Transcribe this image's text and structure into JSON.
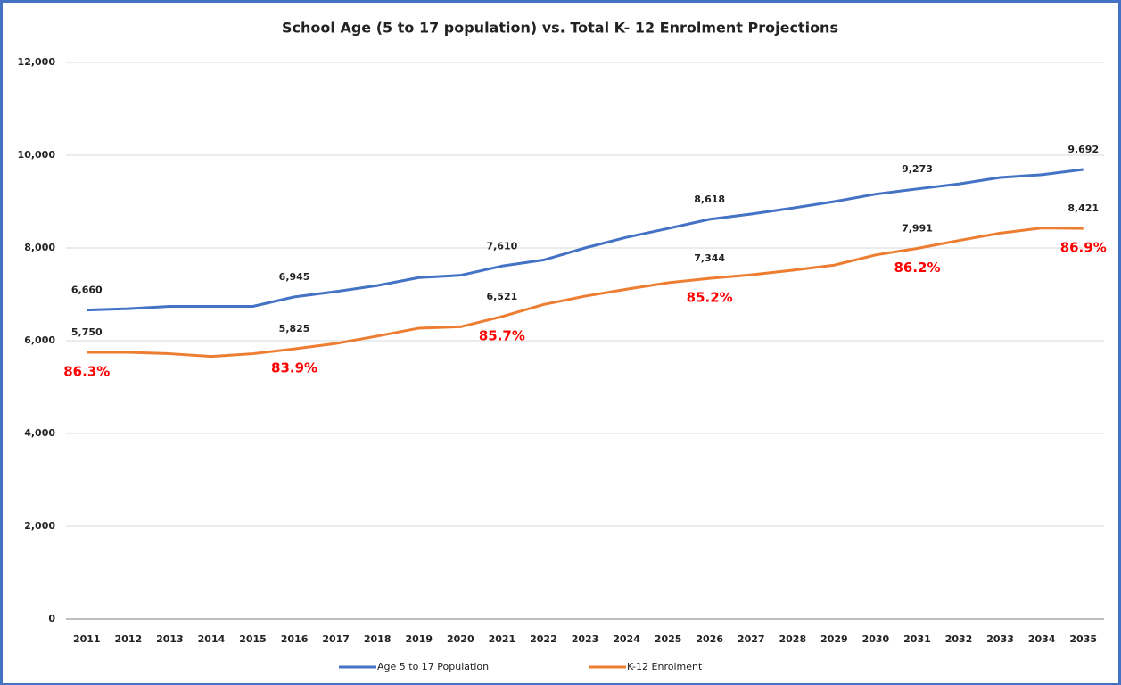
{
  "chart_data": {
    "type": "line",
    "title": "School Age (5 to 17 population) vs. Total K- 12 Enrolment Projections",
    "categories": [
      "2011",
      "2012",
      "2013",
      "2014",
      "2015",
      "2016",
      "2017",
      "2018",
      "2019",
      "2020",
      "2021",
      "2022",
      "2023",
      "2024",
      "2025",
      "2026",
      "2027",
      "2028",
      "2029",
      "2030",
      "2031",
      "2032",
      "2033",
      "2034",
      "2035"
    ],
    "series": [
      {
        "name": "Age 5 to 17 Population",
        "color": "#4472c4",
        "values": [
          6660,
          6690,
          6740,
          6740,
          6740,
          6945,
          7060,
          7190,
          7360,
          7410,
          7610,
          7740,
          8000,
          8230,
          8420,
          8618,
          8730,
          8860,
          9000,
          9160,
          9273,
          9380,
          9520,
          9580,
          9692
        ],
        "value_labels": [
          "6,660",
          null,
          null,
          null,
          null,
          "6,945",
          null,
          null,
          null,
          null,
          "7,610",
          null,
          null,
          null,
          null,
          "8,618",
          null,
          null,
          null,
          null,
          "9,273",
          null,
          null,
          null,
          "9,692"
        ]
      },
      {
        "name": "K-12 Enrolment",
        "color": "#ed7d31",
        "values": [
          5750,
          5750,
          5720,
          5660,
          5720,
          5825,
          5940,
          6100,
          6270,
          6300,
          6521,
          6780,
          6960,
          7110,
          7250,
          7344,
          7420,
          7520,
          7630,
          7850,
          7991,
          8160,
          8320,
          8430,
          8421
        ],
        "value_labels": [
          "5,750",
          null,
          null,
          null,
          null,
          "5,825",
          null,
          null,
          null,
          null,
          "6,521",
          null,
          null,
          null,
          null,
          "7,344",
          null,
          null,
          null,
          null,
          "7,991",
          null,
          null,
          null,
          "8,421"
        ]
      }
    ],
    "annotations": [
      {
        "x": "2011",
        "label": "86.3%"
      },
      {
        "x": "2016",
        "label": "83.9%"
      },
      {
        "x": "2021",
        "label": "85.7%"
      },
      {
        "x": "2026",
        "label": "85.2%"
      },
      {
        "x": "2031",
        "label": "86.2%"
      },
      {
        "x": "2035",
        "label": "86.9%"
      }
    ],
    "ylim": [
      0,
      12000
    ],
    "yticks": [
      0,
      {
        "value": 2000,
        "label": "2,000"
      },
      {
        "value": 4000,
        "label": "4,000"
      },
      {
        "value": 6000,
        "label": "6,000"
      },
      {
        "value": 8000,
        "label": "8,000"
      },
      {
        "value": 10000,
        "label": "10,000"
      },
      {
        "value": 12000,
        "label": "12,000"
      }
    ],
    "grid": true,
    "legend": "bottom"
  }
}
